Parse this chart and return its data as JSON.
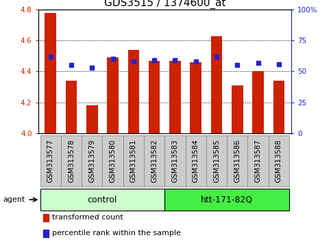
{
  "title": "GDS3515 / 1374600_at",
  "categories": [
    "GSM313577",
    "GSM313578",
    "GSM313579",
    "GSM313580",
    "GSM313581",
    "GSM313582",
    "GSM313583",
    "GSM313584",
    "GSM313585",
    "GSM313586",
    "GSM313587",
    "GSM313588"
  ],
  "bar_values": [
    4.78,
    4.34,
    4.18,
    4.49,
    4.54,
    4.47,
    4.47,
    4.46,
    4.63,
    4.31,
    4.4,
    4.34
  ],
  "dot_values": [
    62,
    55,
    53,
    60,
    58,
    59,
    59,
    58,
    62,
    55,
    57,
    56
  ],
  "ylim_left": [
    4.0,
    4.8
  ],
  "ylim_right": [
    0,
    100
  ],
  "yticks_left": [
    4.0,
    4.2,
    4.4,
    4.6,
    4.8
  ],
  "yticks_right": [
    0,
    25,
    50,
    75,
    100
  ],
  "ytick_right_labels": [
    "0",
    "25",
    "50",
    "75",
    "100%"
  ],
  "bar_color": "#cc2200",
  "dot_color": "#2222cc",
  "agent_label": "agent",
  "groups": [
    {
      "label": "control",
      "start": 0,
      "end": 6,
      "color": "#ccffcc",
      "edge": "#000000"
    },
    {
      "label": "htt-171-82Q",
      "start": 6,
      "end": 12,
      "color": "#44ee44",
      "edge": "#000000"
    }
  ],
  "legend_items": [
    {
      "label": "transformed count",
      "color": "#cc2200"
    },
    {
      "label": "percentile rank within the sample",
      "color": "#2222cc"
    }
  ],
  "bar_width": 0.55,
  "tick_fontsize": 7.5,
  "title_fontsize": 11,
  "group_label_fontsize": 9,
  "legend_fontsize": 8,
  "bg_color": "#ffffff",
  "xtick_bg": "#dddddd"
}
